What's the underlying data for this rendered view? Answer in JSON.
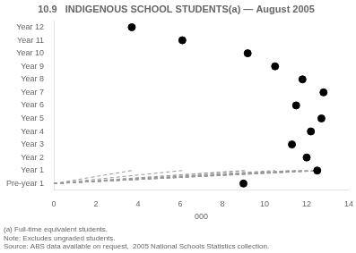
{
  "chart_data": {
    "type": "lollipop",
    "title": "10.9   INDIGENOUS SCHOOL STUDENTS(a) — August 2005",
    "x_label": "000",
    "categories": [
      "Pre-year 1",
      "Year 1",
      "Year 2",
      "Year 3",
      "Year 4",
      "Year 5",
      "Year 6",
      "Year 7",
      "Year 8",
      "Year 9",
      "Year 10",
      "Year 11",
      "Year 12"
    ],
    "values": [
      9.0,
      12.5,
      12.0,
      11.3,
      12.2,
      12.7,
      11.5,
      12.8,
      11.8,
      10.5,
      9.2,
      6.1,
      3.7
    ],
    "xlim": [
      0,
      14
    ],
    "xticks": [
      0,
      2,
      4,
      6,
      8,
      10,
      12,
      14
    ],
    "color": "black",
    "marker": "circle",
    "line_style": "dashed",
    "grid": false,
    "annotations": [
      "(a) Full-time equivalent students.",
      "Note: Excludes ungraded students.",
      "Source: ABS data available on request,  2005 National Schools Statistics collection."
    ]
  }
}
